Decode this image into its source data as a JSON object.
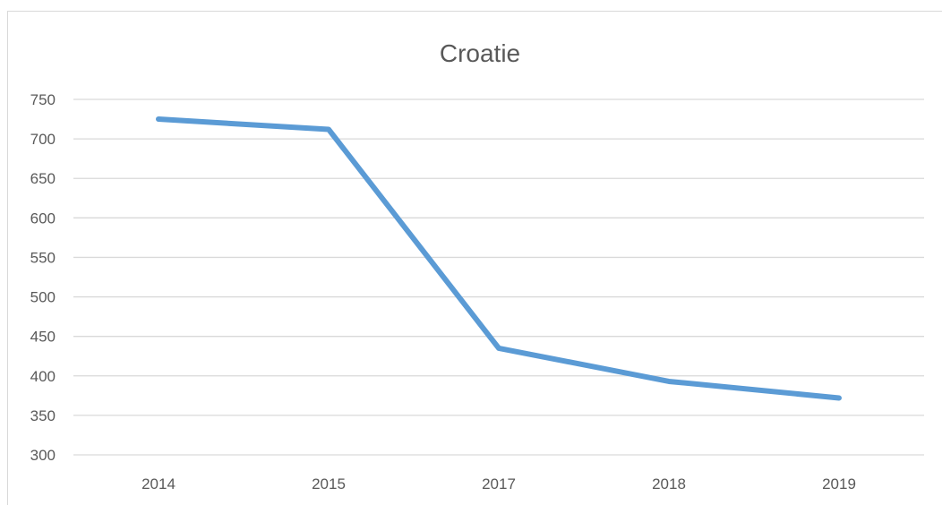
{
  "chart_data": {
    "type": "line",
    "title": "Croatie",
    "categories": [
      "2014",
      "2015",
      "2017",
      "2018",
      "2019"
    ],
    "series": [
      {
        "values": [
          725,
          712,
          435,
          393,
          372
        ],
        "color": "#5b9bd5"
      }
    ],
    "ylim": [
      300,
      750
    ],
    "yticks": [
      "300",
      "350",
      "400",
      "450",
      "500",
      "550",
      "600",
      "650",
      "700",
      "750"
    ],
    "xlabel": "",
    "ylabel": "",
    "grid": true,
    "legend": "none"
  }
}
